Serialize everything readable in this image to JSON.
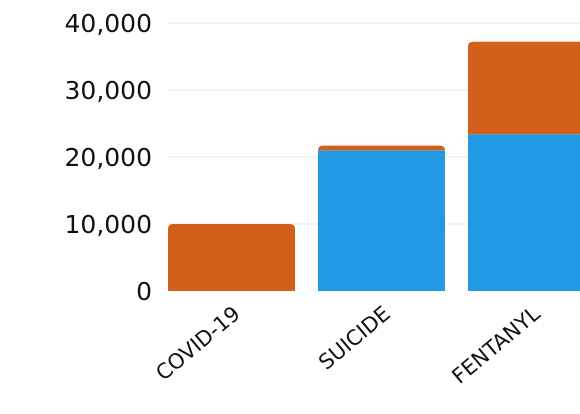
{
  "chart_data": {
    "type": "bar",
    "stacked": true,
    "categories": [
      "COVID-19",
      "SUICIDE",
      "FENTANYL"
    ],
    "series": [
      {
        "color": "#2499e3",
        "values": [
          0,
          21000,
          23400
        ]
      },
      {
        "color": "#d2601a",
        "values": [
          10000,
          700,
          13800
        ]
      }
    ],
    "y_ticks": [
      "0",
      "10,000",
      "20,000",
      "30,000",
      "40,000"
    ],
    "ylim": [
      0,
      40000
    ],
    "grid": true,
    "legend": "none"
  }
}
